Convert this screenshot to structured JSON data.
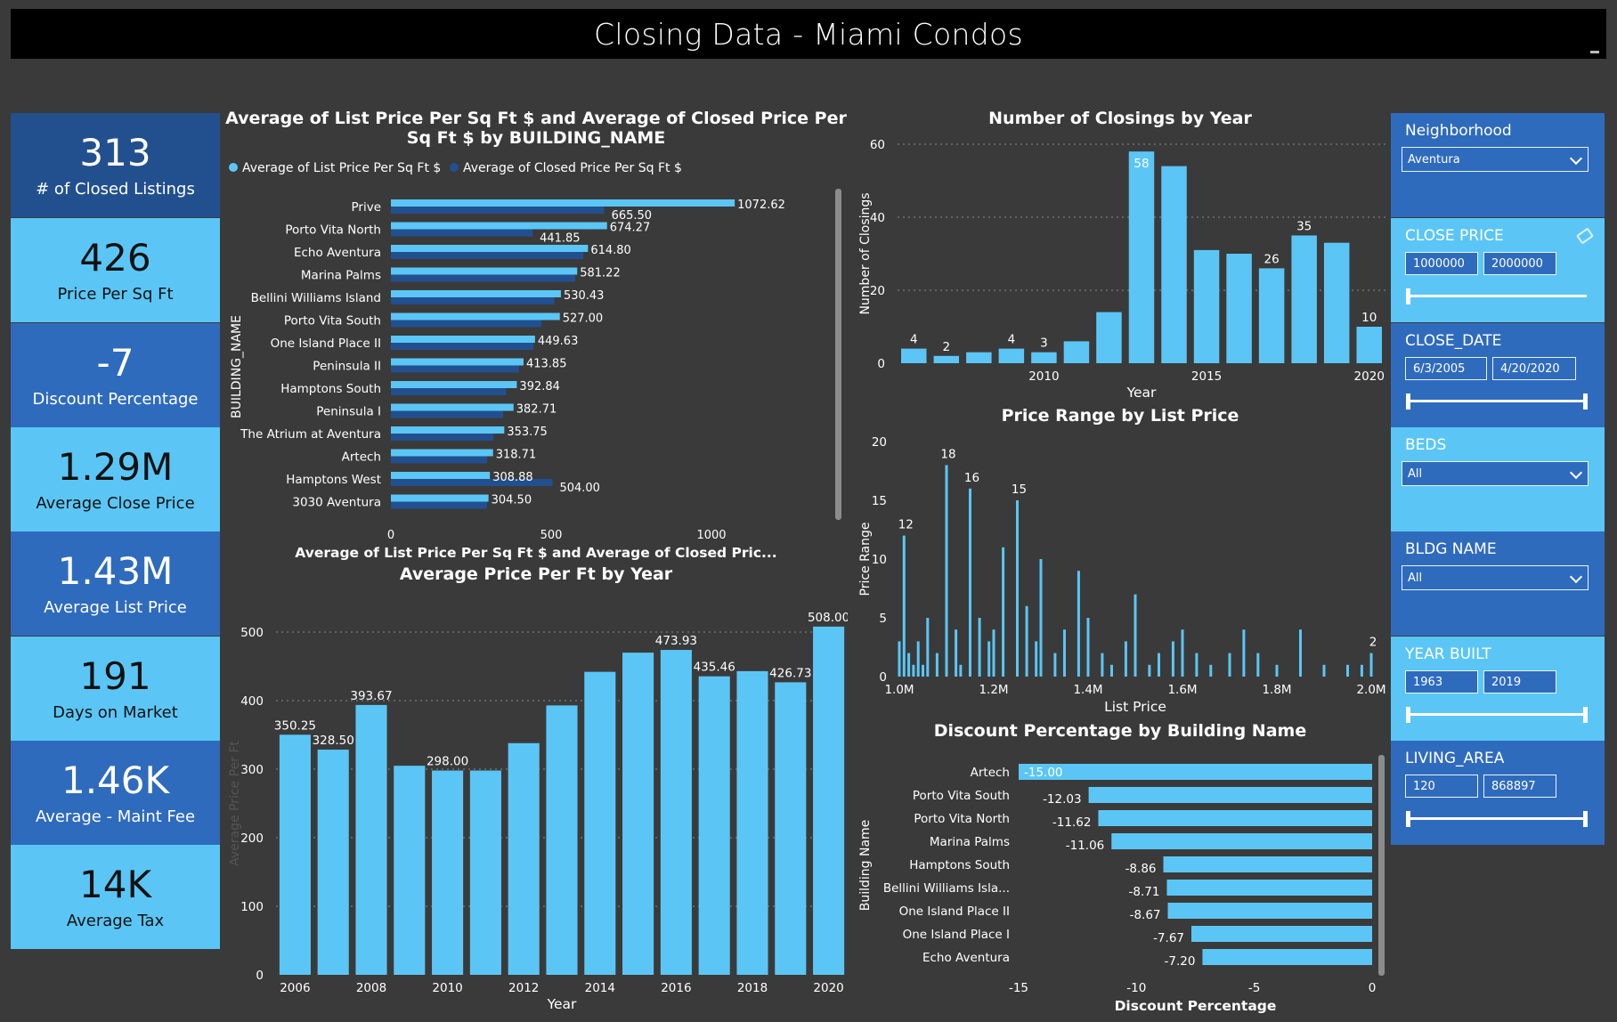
{
  "header": {
    "title": "Closing Data - Miami Condos"
  },
  "kpis": [
    {
      "value": "313",
      "label": "# of Closed Listings",
      "style": "dark"
    },
    {
      "value": "426",
      "label": "Price Per Sq Ft",
      "style": "light"
    },
    {
      "value": "-7",
      "label": "Discount Percentage",
      "style": "mid"
    },
    {
      "value": "1.29M",
      "label": "Average Close Price",
      "style": "light"
    },
    {
      "value": "1.43M",
      "label": "Average List Price",
      "style": "mid"
    },
    {
      "value": "191",
      "label": "Days on Market",
      "style": "light"
    },
    {
      "value": "1.46K",
      "label": "Average - Maint Fee",
      "style": "mid"
    },
    {
      "value": "14K",
      "label": "Average Tax",
      "style": "light"
    }
  ],
  "colors": {
    "light_blue": "#5bc6f5",
    "dark_blue": "#22508f",
    "mid_blue": "#2f6bbd",
    "background": "#3a3a3a"
  },
  "filters": {
    "neighborhood": {
      "label": "Neighborhood",
      "value": "Aventura"
    },
    "close_price": {
      "label": "CLOSE PRICE",
      "min": "1000000",
      "max": "2000000",
      "icon": "eraser-icon",
      "position_fraction": [
        0.0,
        1.0
      ]
    },
    "close_date": {
      "label": "CLOSE_DATE",
      "min": "6/3/2005",
      "max": "4/20/2020"
    },
    "beds": {
      "label": "BEDS",
      "value": "All"
    },
    "bldg_name": {
      "label": "BLDG NAME",
      "value": "All"
    },
    "year_built": {
      "label": "YEAR BUILT",
      "min": "1963",
      "max": "2019"
    },
    "living_area": {
      "label": "LIVING_AREA",
      "min": "120",
      "max": "868897"
    }
  },
  "chart_data": [
    {
      "id": "list_vs_closed",
      "type": "bar",
      "orientation": "horizontal",
      "title": "Average of List Price Per Sq Ft $ and Average of Closed Price Per Sq Ft $ by BUILDING_NAME",
      "ylabel": "BUILDING_NAME",
      "xlabel": "Average of List Price Per Sq Ft $ and Average of Closed Pric...",
      "legend": [
        "Average of List Price Per Sq Ft $",
        "Average of Closed Price Per Sq Ft $"
      ],
      "categories": [
        "Prive",
        "Porto Vita North",
        "Echo Aventura",
        "Marina Palms",
        "Bellini Williams Island",
        "Porto Vita South",
        "One Island Place II",
        "Peninsula II",
        "Hamptons South",
        "Peninsula I",
        "The Atrium at Aventura",
        "Artech",
        "Hamptons West",
        "3030 Aventura"
      ],
      "series": [
        {
          "name": "Average of List Price Per Sq Ft $",
          "values": [
            1072.62,
            674.27,
            614.8,
            581.22,
            530.43,
            527.0,
            449.63,
            413.85,
            392.84,
            382.71,
            353.75,
            318.71,
            308.88,
            304.5
          ]
        },
        {
          "name": "Average of Closed Price Per Sq Ft $",
          "values": [
            665.5,
            441.85,
            600,
            575,
            510,
            470,
            445,
            400,
            360,
            350,
            320,
            300,
            504.0,
            300
          ]
        }
      ],
      "data_labels": [
        [
          "1072.62",
          "674.27",
          "614.80",
          "581.22",
          "530.43",
          "527.00",
          "449.63",
          "413.85",
          "392.84",
          "382.71",
          "353.75",
          "318.71",
          "308.88",
          "304.50"
        ],
        [
          "665.50",
          "441.85",
          "",
          "",
          "",
          "",
          "",
          "",
          "",
          "",
          "",
          "",
          "504.00",
          ""
        ]
      ],
      "xticks": [
        "0",
        "500",
        "1000"
      ],
      "xlim": [
        0,
        1250
      ]
    },
    {
      "id": "price_per_ft_year",
      "type": "bar",
      "title": "Average Price Per Ft by Year",
      "xlabel": "Year",
      "ylabel": "Average Price Per Ft",
      "categories": [
        "2006",
        "2007",
        "2008",
        "2009",
        "2010",
        "2011",
        "2012",
        "2013",
        "2014",
        "2015",
        "2016",
        "2017",
        "2018",
        "2019",
        "2020"
      ],
      "values": [
        350.25,
        328.5,
        393.67,
        305,
        298.0,
        298,
        338,
        393,
        442,
        470,
        473.93,
        435.46,
        443,
        426.73,
        508.0
      ],
      "data_labels": [
        "350.25",
        "328.50",
        "393.67",
        "",
        "298.00",
        "",
        "",
        "",
        "",
        "",
        "473.93",
        "435.46",
        "",
        "426.73",
        "508.00"
      ],
      "xticks": [
        "2006",
        "2008",
        "2010",
        "2012",
        "2014",
        "2016",
        "2018",
        "2020"
      ],
      "yticks": [
        "0",
        "100",
        "200",
        "300",
        "400",
        "500"
      ],
      "ylim": [
        0,
        500
      ]
    },
    {
      "id": "closings_by_year",
      "type": "bar",
      "title": "Number of Closings by Year",
      "xlabel": "Year",
      "ylabel": "Number of Closings",
      "categories": [
        "2006",
        "2007",
        "2008",
        "2009",
        "2010",
        "2011",
        "2012",
        "2013",
        "2014",
        "2015",
        "2016",
        "2017",
        "2018",
        "2019",
        "2020"
      ],
      "values": [
        4,
        2,
        3,
        4,
        3,
        6,
        14,
        58,
        54,
        31,
        30,
        26,
        35,
        33,
        10
      ],
      "data_labels": [
        "4",
        "2",
        "",
        "4",
        "3",
        "",
        "",
        "58",
        "",
        "",
        "",
        "26",
        "35",
        "",
        "10"
      ],
      "xticks": [
        "2010",
        "2015",
        "2020"
      ],
      "yticks": [
        "0",
        "20",
        "40",
        "60"
      ],
      "ylim": [
        0,
        60
      ]
    },
    {
      "id": "price_range",
      "type": "bar",
      "title": "Price Range by List Price",
      "xlabel": "List Price",
      "ylabel": "Price Range",
      "x": [
        1.0,
        1.01,
        1.02,
        1.03,
        1.04,
        1.05,
        1.06,
        1.08,
        1.1,
        1.12,
        1.13,
        1.15,
        1.17,
        1.19,
        1.2,
        1.22,
        1.25,
        1.27,
        1.29,
        1.3,
        1.33,
        1.35,
        1.38,
        1.4,
        1.43,
        1.45,
        1.48,
        1.5,
        1.53,
        1.55,
        1.58,
        1.6,
        1.63,
        1.66,
        1.7,
        1.73,
        1.76,
        1.8,
        1.85,
        1.9,
        1.95,
        1.98,
        2.0
      ],
      "values": [
        3,
        12,
        2,
        1,
        3,
        1,
        5,
        2,
        18,
        4,
        1,
        16,
        5,
        3,
        4,
        11,
        15,
        6,
        3,
        10,
        2,
        4,
        9,
        5,
        2,
        1,
        3,
        7,
        1,
        2,
        3,
        4,
        2,
        1,
        2,
        4,
        2,
        1,
        4,
        1,
        1,
        1,
        2
      ],
      "data_labels": [
        {
          "x": 1.01,
          "text": "12"
        },
        {
          "x": 1.1,
          "text": "18"
        },
        {
          "x": 1.15,
          "text": "16"
        },
        {
          "x": 1.25,
          "text": "15"
        },
        {
          "x": 2.0,
          "text": "2"
        }
      ],
      "xticks": [
        "1.0M",
        "1.2M",
        "1.4M",
        "1.6M",
        "1.8M",
        "2.0M"
      ],
      "yticks": [
        "0",
        "5",
        "10",
        "15",
        "20"
      ],
      "xlim": [
        1.0,
        2.0
      ],
      "ylim": [
        0,
        20
      ]
    },
    {
      "id": "discount_by_building",
      "type": "bar",
      "orientation": "horizontal",
      "title": "Discount Percentage by Building Name",
      "xlabel": "Discount Percentage",
      "ylabel": "Building Name",
      "categories": [
        "Artech",
        "Porto Vita South",
        "Porto Vita North",
        "Marina Palms",
        "Hamptons South",
        "Bellini Williams Isla...",
        "One Island Place II",
        "One Island Place I",
        "Echo Aventura"
      ],
      "values": [
        -15.0,
        -12.03,
        -11.62,
        -11.06,
        -8.86,
        -8.71,
        -8.67,
        -7.67,
        -7.2
      ],
      "data_labels": [
        "-15.00",
        "-12.03",
        "-11.62",
        "-11.06",
        "-8.86",
        "-8.71",
        "-8.67",
        "-7.67",
        "-7.20"
      ],
      "xticks": [
        "-15",
        "-10",
        "-5",
        "0"
      ],
      "xlim": [
        -15,
        0
      ]
    }
  ]
}
